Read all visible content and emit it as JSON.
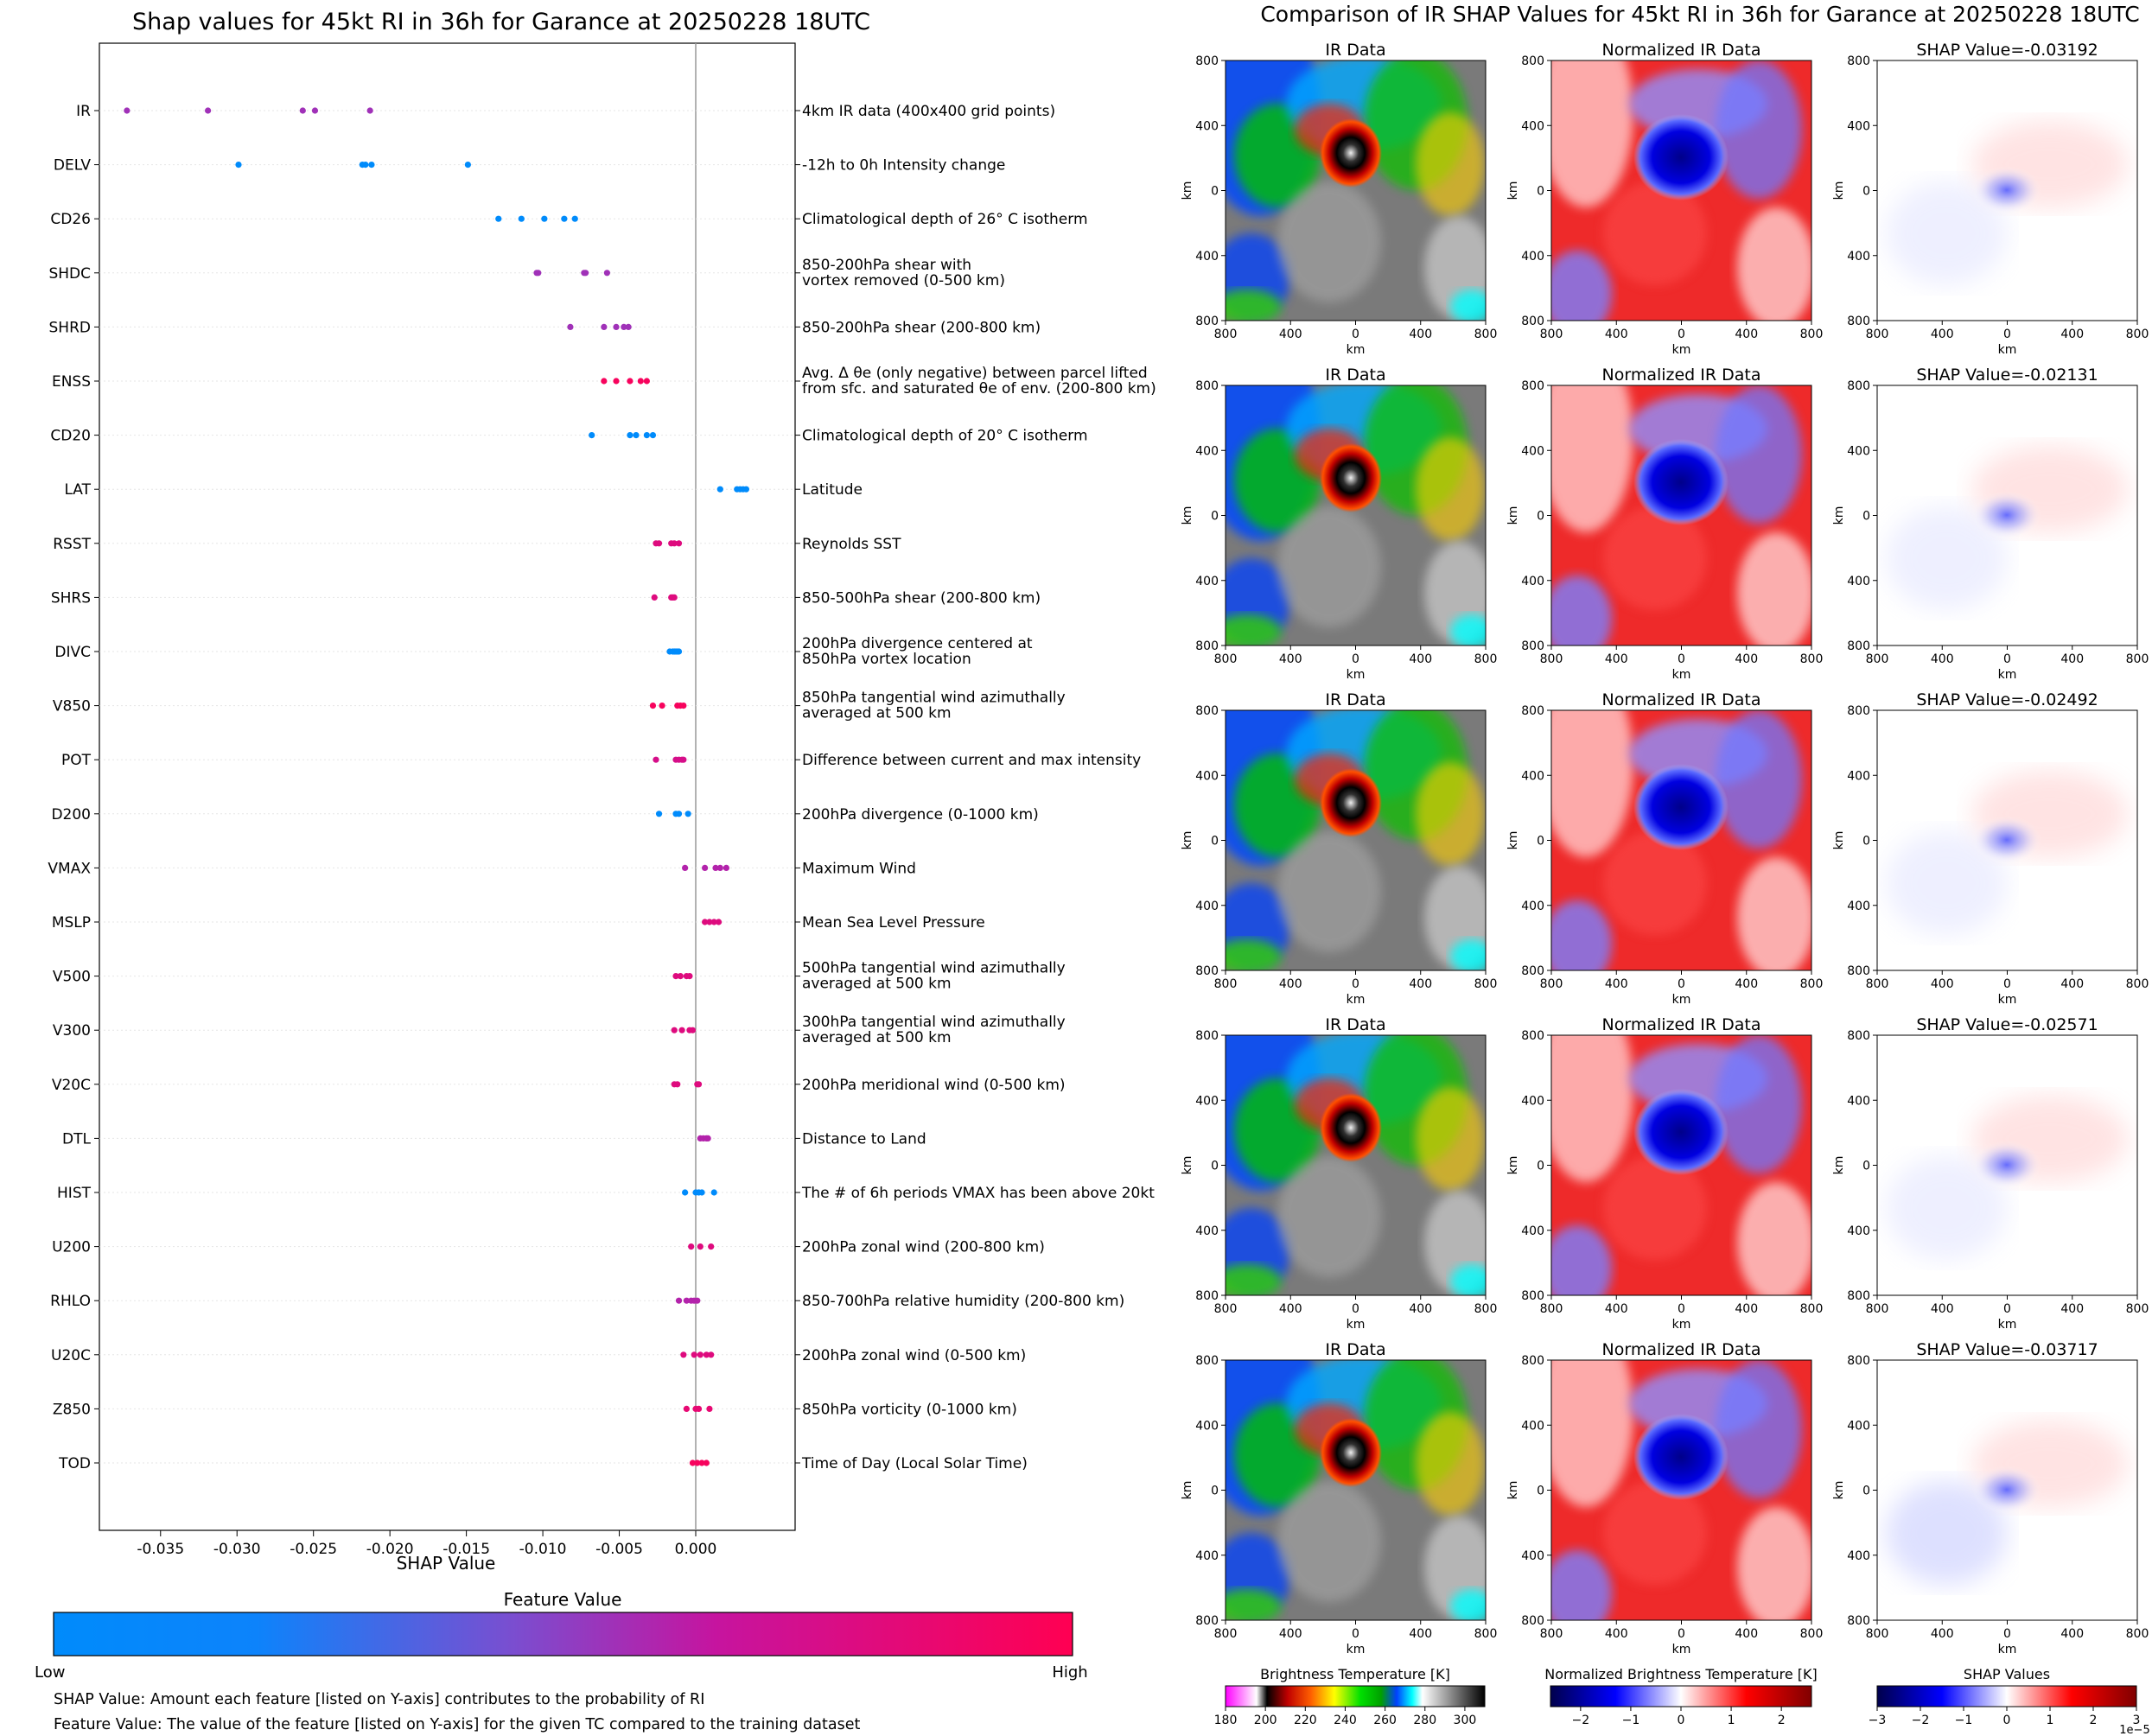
{
  "chart_data": [
    {
      "type": "scatter",
      "title": "Shap values for 45kt RI in 36h for Garance at 20250228 18UTC",
      "xlabel": "SHAP Value",
      "xlim": [
        -0.039,
        0.0065
      ],
      "xticks": [
        "-0.035",
        "-0.030",
        "-0.025",
        "-0.020",
        "-0.015",
        "-0.010",
        "-0.005",
        "0.000"
      ],
      "xtick_values": [
        -0.035,
        -0.03,
        -0.025,
        -0.02,
        -0.015,
        -0.01,
        -0.005,
        0.0
      ],
      "features": [
        {
          "name": "IR",
          "desc": [
            "4km IR data (400x400 grid points)"
          ],
          "points": [
            [
              -0.0372,
              0.55
            ],
            [
              -0.0319,
              0.55
            ],
            [
              -0.0257,
              0.55
            ],
            [
              -0.0249,
              0.55
            ],
            [
              -0.0213,
              0.55
            ]
          ]
        },
        {
          "name": "DELV",
          "desc": [
            "-12h to 0h Intensity change"
          ],
          "points": [
            [
              -0.0299,
              0.0
            ],
            [
              -0.0218,
              0.0
            ],
            [
              -0.0216,
              0.0
            ],
            [
              -0.0212,
              0.0
            ],
            [
              -0.0149,
              0.0
            ]
          ]
        },
        {
          "name": "CD26",
          "desc": [
            "Climatological depth of 26° C isotherm"
          ],
          "points": [
            [
              -0.0129,
              0.0
            ],
            [
              -0.0114,
              0.0
            ],
            [
              -0.0099,
              0.0
            ],
            [
              -0.0086,
              0.0
            ],
            [
              -0.0079,
              0.0
            ]
          ]
        },
        {
          "name": "SHDC",
          "desc": [
            "850-200hPa shear with",
            "vortex removed (0-500 km)"
          ],
          "points": [
            [
              -0.0104,
              0.55
            ],
            [
              -0.0103,
              0.55
            ],
            [
              -0.0073,
              0.55
            ],
            [
              -0.0072,
              0.55
            ],
            [
              -0.0058,
              0.55
            ]
          ]
        },
        {
          "name": "SHRD",
          "desc": [
            "850-200hPa shear (200-800 km)"
          ],
          "points": [
            [
              -0.0082,
              0.55
            ],
            [
              -0.006,
              0.55
            ],
            [
              -0.0052,
              0.55
            ],
            [
              -0.0047,
              0.55
            ],
            [
              -0.0044,
              0.55
            ]
          ]
        },
        {
          "name": "ENSS",
          "desc": [
            "Avg. Δ θe (only negative) between parcel lifted",
            "from sfc. and saturated θe of env. (200-800 km)"
          ],
          "points": [
            [
              -0.006,
              0.95
            ],
            [
              -0.0052,
              0.95
            ],
            [
              -0.0043,
              0.95
            ],
            [
              -0.0036,
              0.95
            ],
            [
              -0.0032,
              0.95
            ]
          ]
        },
        {
          "name": "CD20",
          "desc": [
            "Climatological depth of 20° C isotherm"
          ],
          "points": [
            [
              -0.0068,
              0.0
            ],
            [
              -0.0043,
              0.0
            ],
            [
              -0.0039,
              0.0
            ],
            [
              -0.0032,
              0.0
            ],
            [
              -0.0028,
              0.0
            ]
          ]
        },
        {
          "name": "LAT",
          "desc": [
            "Latitude"
          ],
          "points": [
            [
              0.0016,
              0.0
            ],
            [
              0.0027,
              0.0
            ],
            [
              0.0029,
              0.0
            ],
            [
              0.0031,
              0.0
            ],
            [
              0.0033,
              0.0
            ]
          ]
        },
        {
          "name": "RSST",
          "desc": [
            "Reynolds SST"
          ],
          "points": [
            [
              -0.0026,
              0.8
            ],
            [
              -0.0024,
              0.8
            ],
            [
              -0.0016,
              0.8
            ],
            [
              -0.0014,
              0.8
            ],
            [
              -0.0011,
              0.8
            ]
          ]
        },
        {
          "name": "SHRS",
          "desc": [
            "850-500hPa shear (200-800 km)"
          ],
          "points": [
            [
              -0.0027,
              0.8
            ],
            [
              -0.0016,
              0.8
            ],
            [
              -0.0015,
              0.8
            ],
            [
              -0.0014,
              0.8
            ]
          ]
        },
        {
          "name": "DIVC",
          "desc": [
            "200hPa divergence centered at",
            "850hPa vortex location"
          ],
          "points": [
            [
              -0.0017,
              0.0
            ],
            [
              -0.0015,
              0.0
            ],
            [
              -0.0014,
              0.0
            ],
            [
              -0.0013,
              0.0
            ],
            [
              -0.0012,
              0.0
            ],
            [
              -0.0011,
              0.0
            ]
          ]
        },
        {
          "name": "V850",
          "desc": [
            "850hPa tangential wind azimuthally",
            "averaged at 500 km"
          ],
          "points": [
            [
              -0.0028,
              0.95
            ],
            [
              -0.0022,
              0.95
            ],
            [
              -0.0012,
              0.95
            ],
            [
              -0.001,
              0.95
            ],
            [
              -0.0008,
              0.95
            ]
          ]
        },
        {
          "name": "POT",
          "desc": [
            "Difference between current and max intensity"
          ],
          "points": [
            [
              -0.0026,
              0.75
            ],
            [
              -0.0013,
              0.75
            ],
            [
              -0.0011,
              0.75
            ],
            [
              -0.0009,
              0.75
            ],
            [
              -0.0008,
              0.75
            ]
          ]
        },
        {
          "name": "D200",
          "desc": [
            "200hPa divergence (0-1000 km)"
          ],
          "points": [
            [
              -0.0024,
              0.0
            ],
            [
              -0.0013,
              0.0
            ],
            [
              -0.0011,
              0.0
            ],
            [
              -0.0005,
              0.0
            ]
          ]
        },
        {
          "name": "VMAX",
          "desc": [
            "Maximum Wind"
          ],
          "points": [
            [
              -0.0007,
              0.6
            ],
            [
              0.0006,
              0.6
            ],
            [
              0.0013,
              0.6
            ],
            [
              0.0016,
              0.6
            ],
            [
              0.002,
              0.6
            ]
          ]
        },
        {
          "name": "MSLP",
          "desc": [
            "Mean Sea Level Pressure"
          ],
          "points": [
            [
              0.0006,
              0.8
            ],
            [
              0.0009,
              0.8
            ],
            [
              0.0012,
              0.8
            ],
            [
              0.0015,
              0.8
            ]
          ]
        },
        {
          "name": "V500",
          "desc": [
            "500hPa tangential wind azimuthally",
            "averaged at 500 km"
          ],
          "points": [
            [
              -0.0013,
              0.8
            ],
            [
              -0.001,
              0.8
            ],
            [
              -0.0006,
              0.8
            ],
            [
              -0.0004,
              0.8
            ]
          ]
        },
        {
          "name": "V300",
          "desc": [
            "300hPa tangential wind azimuthally",
            "averaged at 500 km"
          ],
          "points": [
            [
              -0.0014,
              0.8
            ],
            [
              -0.0009,
              0.8
            ],
            [
              -0.0004,
              0.8
            ],
            [
              -0.0002,
              0.8
            ]
          ]
        },
        {
          "name": "V20C",
          "desc": [
            "200hPa meridional wind (0-500 km)"
          ],
          "points": [
            [
              -0.0014,
              0.8
            ],
            [
              -0.0012,
              0.8
            ],
            [
              0.0001,
              0.8
            ],
            [
              0.0002,
              0.8
            ]
          ]
        },
        {
          "name": "DTL",
          "desc": [
            "Distance to Land"
          ],
          "points": [
            [
              0.0003,
              0.6
            ],
            [
              0.0005,
              0.6
            ],
            [
              0.0007,
              0.6
            ],
            [
              0.0008,
              0.6
            ]
          ]
        },
        {
          "name": "HIST",
          "desc": [
            "The # of 6h periods VMAX has been above 20kt"
          ],
          "points": [
            [
              -0.0007,
              0.0
            ],
            [
              0.0,
              0.0
            ],
            [
              0.0002,
              0.0
            ],
            [
              0.0004,
              0.0
            ],
            [
              0.0012,
              0.0
            ]
          ]
        },
        {
          "name": "U200",
          "desc": [
            "200hPa zonal wind (200-800 km)"
          ],
          "points": [
            [
              -0.0003,
              0.8
            ],
            [
              0.0003,
              0.8
            ],
            [
              0.001,
              0.8
            ]
          ]
        },
        {
          "name": "RHLO",
          "desc": [
            "850-700hPa relative humidity (200-800 km)"
          ],
          "points": [
            [
              -0.0011,
              0.6
            ],
            [
              -0.0006,
              0.6
            ],
            [
              -0.0003,
              0.6
            ],
            [
              -0.0001,
              0.6
            ],
            [
              0.0001,
              0.6
            ]
          ]
        },
        {
          "name": "U20C",
          "desc": [
            "200hPa zonal wind (0-500 km)"
          ],
          "points": [
            [
              -0.0008,
              0.8
            ],
            [
              -0.0001,
              0.8
            ],
            [
              0.0003,
              0.8
            ],
            [
              0.0007,
              0.8
            ],
            [
              0.001,
              0.8
            ]
          ]
        },
        {
          "name": "Z850",
          "desc": [
            "850hPa vorticity (0-1000 km)"
          ],
          "points": [
            [
              -0.0006,
              0.85
            ],
            [
              0.0,
              0.85
            ],
            [
              0.0002,
              0.85
            ],
            [
              0.0009,
              0.85
            ]
          ]
        },
        {
          "name": "TOD",
          "desc": [
            "Time of Day (Local Solar Time)"
          ],
          "points": [
            [
              -0.0002,
              0.95
            ],
            [
              0.0001,
              0.95
            ],
            [
              0.0004,
              0.95
            ],
            [
              0.0007,
              0.95
            ]
          ]
        }
      ],
      "colorbar": {
        "title": "Feature Value",
        "low": "Low",
        "high": "High",
        "colors": [
          "#008bfb",
          "#ff0052"
        ]
      },
      "notes": [
        "SHAP Value: Amount each feature [listed on Y-axis] contributes to the probability of RI",
        "Feature Value: The value of the feature [listed on Y-axis] for the given TC compared to the training dataset"
      ]
    },
    {
      "type": "heatmap",
      "title": "Comparison of IR SHAP Values for 45kt RI in 36h for Garance at 20250228 18UTC",
      "column_titles": [
        "IR Data",
        "Normalized IR Data"
      ],
      "shap_titles": [
        "SHAP Value=-0.03192",
        "SHAP Value=-0.02131",
        "SHAP Value=-0.02492",
        "SHAP Value=-0.02571",
        "SHAP Value=-0.03717"
      ],
      "axis_label": "km",
      "axis_ticks": [
        "800",
        "400",
        "0",
        "400",
        "800"
      ],
      "colorbars": [
        {
          "title": "Brightness Temperature [K]",
          "ticks": [
            "180",
            "200",
            "220",
            "240",
            "260",
            "280",
            "300"
          ],
          "range": [
            180,
            310
          ]
        },
        {
          "title": "Normalized Brightness Temperature [K]",
          "ticks": [
            "−2",
            "−1",
            "0",
            "1",
            "2"
          ],
          "range": [
            -2.6,
            2.6
          ]
        },
        {
          "title": "SHAP Values",
          "ticks": [
            "−3",
            "−2",
            "−1",
            "0",
            "1",
            "2",
            "3"
          ],
          "range": [
            -3,
            3
          ],
          "multiplier": "1e−5"
        }
      ]
    }
  ]
}
